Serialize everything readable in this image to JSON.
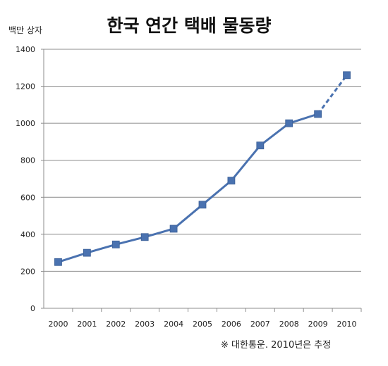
{
  "chart_data": {
    "type": "line",
    "title": "한국 연간 택배 물동량",
    "ylabel": "백만 상자",
    "xlabel": "",
    "categories": [
      "2000",
      "2001",
      "2002",
      "2003",
      "2004",
      "2005",
      "2006",
      "2007",
      "2008",
      "2009",
      "2010"
    ],
    "series": [
      {
        "values": [
          250,
          300,
          345,
          385,
          430,
          560,
          690,
          880,
          1000,
          1050,
          1260
        ],
        "color": "#4a72b0",
        "estimated_segment": [
          "2009",
          "2010"
        ],
        "marker": "square"
      }
    ],
    "ylim": [
      0,
      1400
    ],
    "yticks": [
      0,
      200,
      400,
      600,
      800,
      1000,
      1200,
      1400
    ],
    "grid": true,
    "legend": "none",
    "source_note": "※ 대한통운. 2010년은 추정"
  }
}
